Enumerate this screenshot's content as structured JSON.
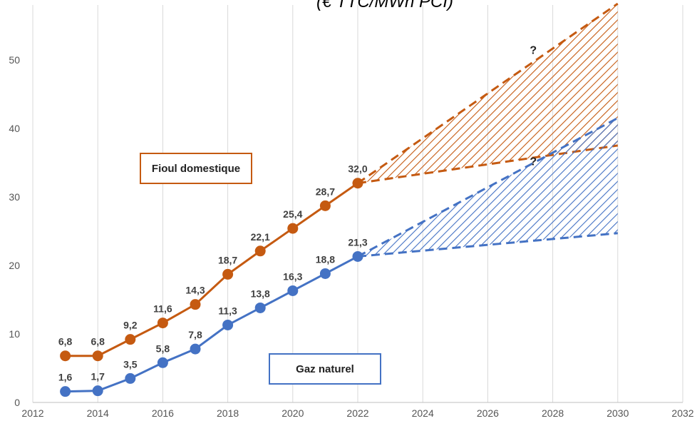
{
  "chart_data": {
    "type": "line",
    "title": "(€ TTC/MWh PCI)",
    "x_ticks": [
      "2012",
      "2014",
      "2016",
      "2018",
      "2020",
      "2022",
      "2024",
      "2026",
      "2028",
      "2030",
      "2032"
    ],
    "y_ticks": [
      "0",
      "10",
      "20",
      "30",
      "40",
      "50"
    ],
    "xlim": [
      2012,
      2032
    ],
    "ylim": [
      0,
      58
    ],
    "grid": "vertical",
    "series": [
      {
        "name": "Fioul domestique",
        "color": "#c55a11",
        "x": [
          2013,
          2014,
          2015,
          2016,
          2017,
          2018,
          2019,
          2020,
          2021,
          2022
        ],
        "values": [
          6.8,
          6.8,
          9.2,
          11.6,
          14.3,
          18.7,
          22.1,
          25.4,
          28.7,
          32.0
        ],
        "labels": [
          "6,8",
          "6,8",
          "9,2",
          "11,6",
          "14,3",
          "18,7",
          "22,1",
          "25,4",
          "28,7",
          "32,0"
        ],
        "projection": {
          "x": [
            2022,
            2030
          ],
          "upper": [
            32.0,
            58.2
          ],
          "lower": [
            32.0,
            37.5
          ]
        },
        "projection_label": "?"
      },
      {
        "name": "Gaz naturel",
        "color": "#4472c4",
        "x": [
          2013,
          2014,
          2015,
          2016,
          2017,
          2018,
          2019,
          2020,
          2021,
          2022
        ],
        "values": [
          1.6,
          1.7,
          3.5,
          5.8,
          7.8,
          11.3,
          13.8,
          16.3,
          18.8,
          21.3
        ],
        "labels": [
          "1,6",
          "1,7",
          "3,5",
          "5,8",
          "7,8",
          "11,3",
          "13,8",
          "16,3",
          "18,8",
          "21,3"
        ],
        "projection": {
          "x": [
            2022,
            2030
          ],
          "upper": [
            21.3,
            41.5
          ],
          "lower": [
            21.3,
            24.7
          ]
        },
        "projection_label": "?"
      }
    ]
  }
}
